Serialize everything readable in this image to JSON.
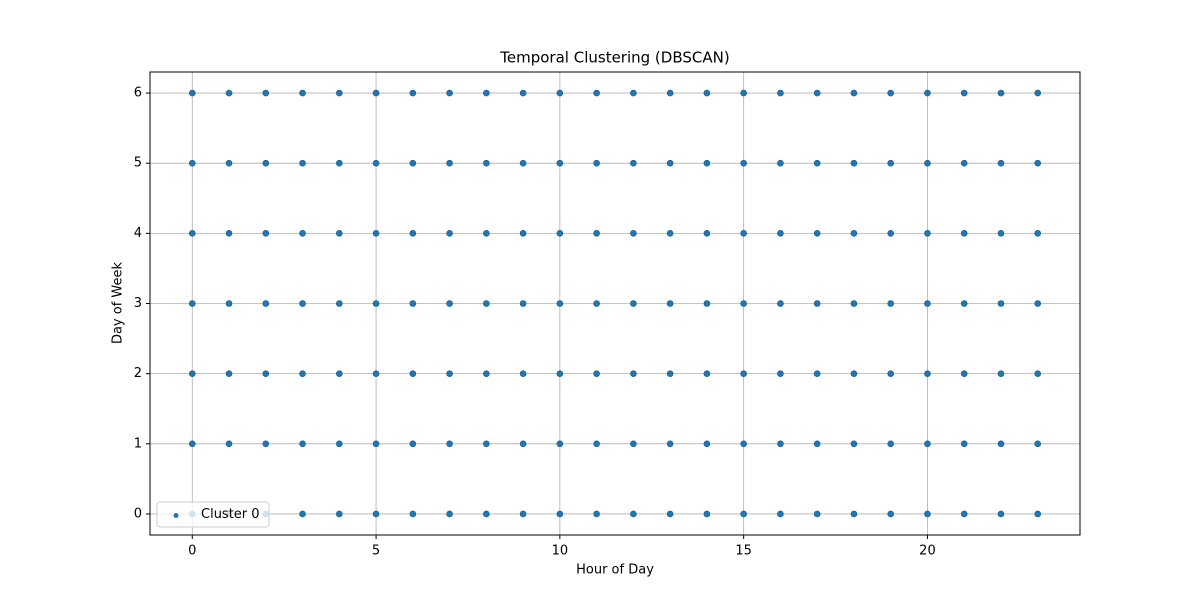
{
  "chart_data": {
    "type": "scatter",
    "title": "Temporal Clustering (DBSCAN)",
    "x_label": "Hour of Day",
    "y_label": "Day of Week",
    "series": [
      {
        "name": "Cluster 0",
        "color": "#1f77b4",
        "x": [
          0,
          1,
          2,
          3,
          4,
          5,
          6,
          7,
          8,
          9,
          10,
          11,
          12,
          13,
          14,
          15,
          16,
          17,
          18,
          19,
          20,
          21,
          22,
          23,
          0,
          1,
          2,
          3,
          4,
          5,
          6,
          7,
          8,
          9,
          10,
          11,
          12,
          13,
          14,
          15,
          16,
          17,
          18,
          19,
          20,
          21,
          22,
          23,
          0,
          1,
          2,
          3,
          4,
          5,
          6,
          7,
          8,
          9,
          10,
          11,
          12,
          13,
          14,
          15,
          16,
          17,
          18,
          19,
          20,
          21,
          22,
          23,
          0,
          1,
          2,
          3,
          4,
          5,
          6,
          7,
          8,
          9,
          10,
          11,
          12,
          13,
          14,
          15,
          16,
          17,
          18,
          19,
          20,
          21,
          22,
          23,
          0,
          1,
          2,
          3,
          4,
          5,
          6,
          7,
          8,
          9,
          10,
          11,
          12,
          13,
          14,
          15,
          16,
          17,
          18,
          19,
          20,
          21,
          22,
          23,
          0,
          1,
          2,
          3,
          4,
          5,
          6,
          7,
          8,
          9,
          10,
          11,
          12,
          13,
          14,
          15,
          16,
          17,
          18,
          19,
          20,
          21,
          22,
          23,
          0,
          1,
          2,
          3,
          4,
          5,
          6,
          7,
          8,
          9,
          10,
          11,
          12,
          13,
          14,
          15,
          16,
          17,
          18,
          19,
          20,
          21,
          22,
          23
        ],
        "values": [
          0,
          0,
          0,
          0,
          0,
          0,
          0,
          0,
          0,
          0,
          0,
          0,
          0,
          0,
          0,
          0,
          0,
          0,
          0,
          0,
          0,
          0,
          0,
          0,
          1,
          1,
          1,
          1,
          1,
          1,
          1,
          1,
          1,
          1,
          1,
          1,
          1,
          1,
          1,
          1,
          1,
          1,
          1,
          1,
          1,
          1,
          1,
          1,
          2,
          2,
          2,
          2,
          2,
          2,
          2,
          2,
          2,
          2,
          2,
          2,
          2,
          2,
          2,
          2,
          2,
          2,
          2,
          2,
          2,
          2,
          2,
          2,
          3,
          3,
          3,
          3,
          3,
          3,
          3,
          3,
          3,
          3,
          3,
          3,
          3,
          3,
          3,
          3,
          3,
          3,
          3,
          3,
          3,
          3,
          3,
          3,
          4,
          4,
          4,
          4,
          4,
          4,
          4,
          4,
          4,
          4,
          4,
          4,
          4,
          4,
          4,
          4,
          4,
          4,
          4,
          4,
          4,
          4,
          4,
          4,
          5,
          5,
          5,
          5,
          5,
          5,
          5,
          5,
          5,
          5,
          5,
          5,
          5,
          5,
          5,
          5,
          5,
          5,
          5,
          5,
          5,
          5,
          5,
          5,
          6,
          6,
          6,
          6,
          6,
          6,
          6,
          6,
          6,
          6,
          6,
          6,
          6,
          6,
          6,
          6,
          6,
          6,
          6,
          6,
          6,
          6,
          6,
          6
        ]
      }
    ],
    "xlim": [
      -1.15,
      24.15
    ],
    "ylim": [
      -0.3,
      6.3
    ],
    "xticks": [
      0,
      5,
      10,
      15,
      20
    ],
    "yticks": [
      0,
      1,
      2,
      3,
      4,
      5,
      6
    ],
    "grid": true,
    "legend": "lower left"
  }
}
